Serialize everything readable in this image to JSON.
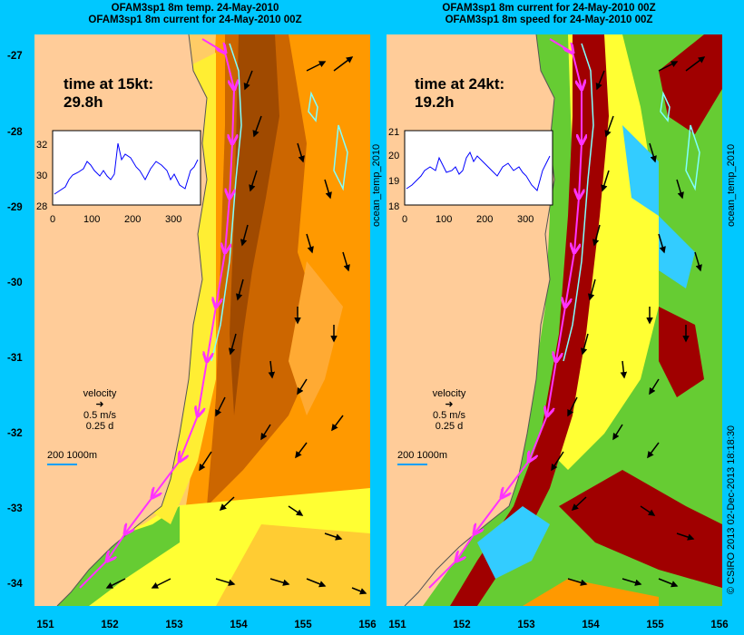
{
  "left_panel": {
    "title_line1": "OFAM3sp1 8m temp. 24-May-2010",
    "title_line2": "OFAM3sp1 8m current for 24-May-2010 00Z",
    "time_label": "time at 15kt:",
    "time_value": "29.8h",
    "inset": {
      "y_ticks": [
        "32",
        "30",
        "28"
      ],
      "x_ticks": [
        "0",
        "100",
        "200",
        "300"
      ]
    },
    "velocity_label": "velocity",
    "velocity_speed": "0.5 m/s",
    "velocity_duration": "0.25 d",
    "scale_bar": "200  1000m"
  },
  "right_panel": {
    "title_line1": "OFAM3sp1 8m current for 24-May-2010 00Z",
    "title_line2": "OFAM3sp1 8m speed for 24-May-2010 00Z",
    "time_label": "time at 24kt:",
    "time_value": "19.2h",
    "inset": {
      "y_ticks": [
        "21",
        "20",
        "19",
        "18"
      ],
      "x_ticks": [
        "0",
        "100",
        "200",
        "300"
      ]
    },
    "velocity_label": "velocity",
    "velocity_speed": "0.5 m/s",
    "velocity_duration": "0.25 d",
    "scale_bar": "200  1000m"
  },
  "y_axis_ticks": [
    "-27",
    "-28",
    "-29",
    "-30",
    "-31",
    "-32",
    "-33",
    "-34"
  ],
  "x_axis_ticks": [
    "151",
    "152",
    "153",
    "154",
    "155",
    "156"
  ],
  "side_label_left": "ocean_temp_2010",
  "side_label_right": "ocean_temp_2010",
  "credit": "© CSIRO 2013   02-Dec-2013 18:18:30",
  "colors": {
    "background": "#00c8ff",
    "land": "#ffcc99",
    "track": "#ff33ff",
    "contour": "#80ffff"
  }
}
